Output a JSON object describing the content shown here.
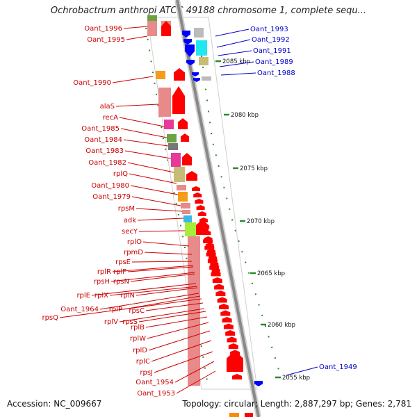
{
  "title": "Ochrobactrum anthropi ATCC 49188 chromosome 1, complete sequ...",
  "footer": {
    "accession": "Accession: NC_009667",
    "summary": "Topology: circular; Length: 2,887,297 bp; Genes: 2,781"
  },
  "colors": {
    "left_label": "#cc0000",
    "right_label": "#0000cc",
    "backbone": "#888888",
    "dotted_ring": "#2a8a2a"
  },
  "kbp_marks": [
    "2085 kbp",
    "2080 kbp",
    "2075 kbp",
    "2070 kbp",
    "2065 kbp",
    "2060 kbp",
    "2055 kbp"
  ],
  "right_genes": [
    "Oant_1993",
    "Oant_1992",
    "Oant_1991",
    "Oant_1989",
    "Oant_1988",
    "Oant_1949"
  ],
  "left_genes": [
    "Oant_1996",
    "Oant_1995",
    "Oant_1990",
    "alaS",
    "recA",
    "Oant_1985",
    "Oant_1984",
    "Oant_1983",
    "Oant_1982",
    "rplQ",
    "Oant_1980",
    "Oant_1979",
    "rpsM",
    "adk",
    "secY",
    "rplO",
    "rpmD",
    "rpsE",
    "rplF",
    "rplR",
    "rpsH",
    "rpsN",
    "rplE",
    "rplX",
    "rplN",
    "Oant_1964",
    "rplP",
    "rpsQ",
    "rpsC",
    "rplV",
    "rpsS",
    "rplB",
    "rplW",
    "rplD",
    "rplC",
    "rpsJ",
    "Oant_1954",
    "Oant_1953"
  ]
}
